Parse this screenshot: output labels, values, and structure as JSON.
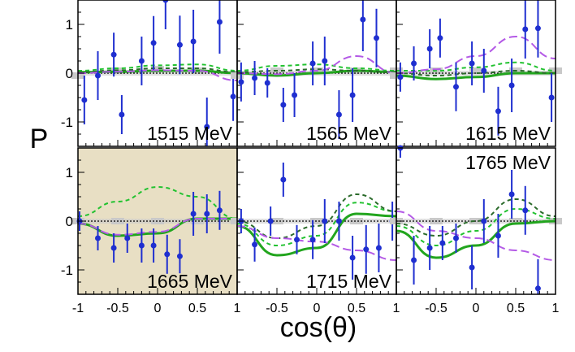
{
  "figure": {
    "ylabel": "P",
    "xlabel": "cos(θ)"
  },
  "colors": {
    "beige_background": "#e8dfc4",
    "data_points": "#1f2fd0",
    "model_solid_green": "#22a51e",
    "model_dashed_green": "#22c230",
    "model_dashed_darkgreen": "#2b6b2b",
    "model_dashed_lightgreen": "#8fdc7a",
    "model_dashed_violet": "#b45ae6",
    "systematic_band": "#c9c9c9",
    "zero_line": "#000000"
  },
  "chart_data": [
    {
      "type": "scatter",
      "label": "1515 MeV",
      "highlighted": false,
      "xlim": [
        -1,
        1
      ],
      "ylim": [
        -1.5,
        1.5
      ],
      "x_ticks": [
        "-1",
        "-0.5",
        "0",
        "0.5",
        "1"
      ],
      "y_ticks": [
        "-1",
        "0",
        "1"
      ],
      "points": [
        {
          "x": -0.92,
          "y": -0.55,
          "err": 0.5
        },
        {
          "x": -0.75,
          "y": -0.05,
          "err": 0.5
        },
        {
          "x": -0.55,
          "y": 0.38,
          "err": 0.45
        },
        {
          "x": -0.45,
          "y": -0.85,
          "err": 0.4
        },
        {
          "x": -0.2,
          "y": 0.25,
          "err": 0.5
        },
        {
          "x": -0.05,
          "y": 0.62,
          "err": 0.55
        },
        {
          "x": 0.1,
          "y": 1.5,
          "err": 0.6
        },
        {
          "x": 0.28,
          "y": 0.58,
          "err": 0.6
        },
        {
          "x": 0.45,
          "y": 0.65,
          "err": 0.65
        },
        {
          "x": 0.62,
          "y": -1.1,
          "err": 0.6
        },
        {
          "x": 0.78,
          "y": 1.05,
          "err": 0.65
        },
        {
          "x": 0.95,
          "y": -0.48,
          "err": 0.5
        }
      ],
      "band": [
        -0.05,
        0.05,
        0.08,
        0.05,
        -0.02
      ],
      "series": [
        {
          "name": "",
          "style": "solid",
          "color": "#22a51e",
          "x": [
            -1,
            -0.5,
            0,
            0.5,
            1
          ],
          "y": [
            0.02,
            0.03,
            0.05,
            0.05,
            0.0
          ]
        },
        {
          "name": "",
          "style": "dashed",
          "color": "#22c230",
          "x": [
            -1,
            -0.5,
            0,
            0.5,
            1
          ],
          "y": [
            0.05,
            0.1,
            0.16,
            0.18,
            0.05
          ]
        },
        {
          "name": "",
          "style": "dashed",
          "color": "#2b6b2b",
          "x": [
            -1,
            -0.5,
            0,
            0.5,
            1
          ],
          "y": [
            0.02,
            0.06,
            0.1,
            0.1,
            0.02
          ]
        },
        {
          "name": "",
          "style": "dashed",
          "color": "#b45ae6",
          "x": [
            -1,
            -0.5,
            0,
            0.5,
            1
          ],
          "y": [
            0.0,
            0.03,
            0.06,
            0.05,
            -0.15
          ]
        }
      ]
    },
    {
      "type": "scatter",
      "label": "1565 MeV",
      "highlighted": false,
      "xlim": [
        -1,
        1
      ],
      "ylim": [
        -1.5,
        1.5
      ],
      "x_ticks": [],
      "y_ticks": [],
      "points": [
        {
          "x": -0.95,
          "y": -0.18,
          "err": 0.4
        },
        {
          "x": -0.78,
          "y": -0.1,
          "err": 0.35
        },
        {
          "x": -0.62,
          "y": -0.2,
          "err": 0.3
        },
        {
          "x": -0.42,
          "y": -0.65,
          "err": 0.35
        },
        {
          "x": -0.28,
          "y": -0.45,
          "err": 0.45
        },
        {
          "x": -0.05,
          "y": 0.2,
          "err": 0.45
        },
        {
          "x": 0.1,
          "y": 0.25,
          "err": 0.5
        },
        {
          "x": 0.28,
          "y": -0.85,
          "err": 0.5
        },
        {
          "x": 0.45,
          "y": -0.45,
          "err": 0.55
        },
        {
          "x": 0.58,
          "y": 1.1,
          "err": 0.65
        },
        {
          "x": 0.75,
          "y": 0.72,
          "err": 0.6
        }
      ],
      "band": [
        -0.05,
        0.05,
        0.05,
        0.05,
        0.05
      ],
      "series": [
        {
          "name": "",
          "style": "solid",
          "color": "#22a51e",
          "x": [
            -1,
            -0.5,
            0,
            0.5,
            1
          ],
          "y": [
            0.0,
            -0.05,
            0.0,
            0.05,
            0.02
          ]
        },
        {
          "name": "",
          "style": "dashed",
          "color": "#22c230",
          "x": [
            -1,
            -0.5,
            0,
            0.5,
            1
          ],
          "y": [
            0.05,
            0.15,
            0.18,
            0.1,
            0.05
          ]
        },
        {
          "name": "",
          "style": "dashed",
          "color": "#2b6b2b",
          "x": [
            -1,
            -0.5,
            0,
            0.5,
            1
          ],
          "y": [
            0.02,
            0.05,
            0.08,
            0.05,
            0.02
          ]
        },
        {
          "name": "",
          "style": "dashed",
          "color": "#b45ae6",
          "x": [
            -1,
            -0.5,
            0,
            0.5,
            1
          ],
          "y": [
            0.0,
            -0.02,
            0.05,
            0.35,
            0.0
          ]
        }
      ]
    },
    {
      "type": "scatter",
      "label": "1615 MeV",
      "highlighted": false,
      "xlim": [
        -1,
        1
      ],
      "ylim": [
        -1.5,
        1.5
      ],
      "x_ticks": [],
      "y_ticks": [],
      "points": [
        {
          "x": -0.95,
          "y": -0.08,
          "err": 0.3
        },
        {
          "x": -0.78,
          "y": 0.2,
          "err": 0.35
        },
        {
          "x": -0.58,
          "y": 0.5,
          "err": 0.4
        },
        {
          "x": -0.45,
          "y": 0.72,
          "err": 0.4
        },
        {
          "x": -0.25,
          "y": -0.28,
          "err": 0.5
        },
        {
          "x": -0.05,
          "y": 0.2,
          "err": 0.45
        },
        {
          "x": 0.1,
          "y": 0.05,
          "err": 0.45
        },
        {
          "x": 0.28,
          "y": -0.78,
          "err": 0.5
        },
        {
          "x": 0.45,
          "y": -0.25,
          "err": 0.55
        },
        {
          "x": 0.62,
          "y": 0.9,
          "err": 0.6
        },
        {
          "x": 0.78,
          "y": 0.92,
          "err": 0.6
        },
        {
          "x": 0.95,
          "y": -0.5,
          "err": 0.5
        }
      ],
      "band": [
        -0.05,
        0.05,
        0.05,
        0.05,
        0.05
      ],
      "series": [
        {
          "name": "",
          "style": "solid",
          "color": "#22a51e",
          "x": [
            -1,
            -0.5,
            0,
            0.5,
            1
          ],
          "y": [
            -0.05,
            -0.12,
            -0.08,
            0.0,
            0.0
          ]
        },
        {
          "name": "",
          "style": "dashed",
          "color": "#22c230",
          "x": [
            -1,
            -0.5,
            0,
            0.5,
            1
          ],
          "y": [
            0.05,
            0.05,
            0.12,
            0.22,
            0.05
          ]
        },
        {
          "name": "",
          "style": "dashed",
          "color": "#2b6b2b",
          "x": [
            -1,
            -0.5,
            0,
            0.5,
            1
          ],
          "y": [
            0.0,
            -0.05,
            0.0,
            0.05,
            0.0
          ]
        },
        {
          "name": "",
          "style": "dashed",
          "color": "#b45ae6",
          "x": [
            -1,
            -0.5,
            0,
            0.5,
            1
          ],
          "y": [
            0.0,
            0.08,
            0.35,
            0.75,
            0.3
          ]
        }
      ]
    },
    {
      "type": "scatter",
      "label": "1665 MeV",
      "highlighted": true,
      "xlim": [
        -1,
        1
      ],
      "ylim": [
        -1.5,
        1.5
      ],
      "x_ticks": [
        "-1",
        "-0.5",
        "0",
        "0.5",
        "1"
      ],
      "y_ticks": [
        "-1",
        "0",
        "1"
      ],
      "points": [
        {
          "x": -0.98,
          "y": 0.0,
          "err": 0.2
        },
        {
          "x": -0.75,
          "y": -0.35,
          "err": 0.25
        },
        {
          "x": -0.55,
          "y": -0.55,
          "err": 0.3
        },
        {
          "x": -0.38,
          "y": -0.35,
          "err": 0.3
        },
        {
          "x": -0.2,
          "y": -0.5,
          "err": 0.35
        },
        {
          "x": -0.05,
          "y": -0.5,
          "err": 0.35
        },
        {
          "x": 0.12,
          "y": -0.68,
          "err": 0.4
        },
        {
          "x": 0.28,
          "y": -0.72,
          "err": 0.35
        },
        {
          "x": 0.45,
          "y": 0.15,
          "err": 0.45
        },
        {
          "x": 0.62,
          "y": 0.15,
          "err": 0.4
        },
        {
          "x": 0.78,
          "y": 0.22,
          "err": 0.4
        }
      ],
      "band": [
        0.0,
        0.0,
        0.0,
        0.0,
        0.0
      ],
      "series": [
        {
          "name": "",
          "style": "solid",
          "color": "#22a51e",
          "x": [
            -1,
            -0.5,
            0,
            0.5,
            1
          ],
          "y": [
            -0.05,
            -0.3,
            -0.25,
            0.05,
            0.05
          ]
        },
        {
          "name": "",
          "style": "dashed",
          "color": "#22c230",
          "x": [
            -1,
            -0.5,
            0,
            0.5,
            1
          ],
          "y": [
            0.1,
            0.4,
            0.7,
            0.5,
            0.05
          ]
        },
        {
          "name": "",
          "style": "dashed",
          "color": "#b45ae6",
          "x": [
            -1,
            -0.5,
            0,
            0.5,
            1
          ],
          "y": [
            -0.05,
            -0.28,
            -0.22,
            0.05,
            0.05
          ]
        }
      ]
    },
    {
      "type": "scatter",
      "label": "1715 MeV",
      "highlighted": false,
      "xlim": [
        -1,
        1
      ],
      "ylim": [
        -1.5,
        1.5
      ],
      "x_ticks": [],
      "y_ticks": [],
      "points": [
        {
          "x": -0.95,
          "y": 0.0,
          "err": 0.25
        },
        {
          "x": -0.78,
          "y": -0.48,
          "err": 0.35
        },
        {
          "x": -0.58,
          "y": 0.0,
          "err": 0.3
        },
        {
          "x": -0.42,
          "y": 0.85,
          "err": 0.35
        },
        {
          "x": -0.25,
          "y": -0.38,
          "err": 0.3
        },
        {
          "x": -0.05,
          "y": -0.38,
          "err": 0.4
        },
        {
          "x": 0.1,
          "y": 0.0,
          "err": 0.45
        },
        {
          "x": 0.28,
          "y": 0.0,
          "err": 0.4
        },
        {
          "x": 0.45,
          "y": -0.75,
          "err": 0.45
        },
        {
          "x": 0.62,
          "y": -0.58,
          "err": 0.5
        },
        {
          "x": 0.78,
          "y": -0.55,
          "err": 0.5
        },
        {
          "x": 0.95,
          "y": 0.0,
          "err": 0.4
        }
      ],
      "band": [
        0.0,
        0.0,
        0.0,
        0.0,
        0.0
      ],
      "series": [
        {
          "name": "",
          "style": "solid",
          "color": "#22a51e",
          "x": [
            -1,
            -0.5,
            0,
            0.5,
            1
          ],
          "y": [
            -0.1,
            -0.7,
            -0.55,
            0.15,
            0.1
          ]
        },
        {
          "name": "",
          "style": "dashed",
          "color": "#22c230",
          "x": [
            -1,
            -0.5,
            0,
            0.5,
            1
          ],
          "y": [
            -0.05,
            -0.5,
            -0.3,
            0.38,
            0.2
          ]
        },
        {
          "name": "",
          "style": "dashed",
          "color": "#2b6b2b",
          "x": [
            -1,
            -0.5,
            0,
            0.5,
            1
          ],
          "y": [
            0.0,
            -0.35,
            -0.1,
            0.55,
            0.2
          ]
        },
        {
          "name": "",
          "style": "dashed",
          "color": "#b45ae6",
          "x": [
            -1,
            -0.5,
            0,
            0.5,
            1
          ],
          "y": [
            -0.1,
            -0.35,
            -0.42,
            -0.6,
            -0.8
          ]
        }
      ]
    },
    {
      "type": "scatter",
      "label": "1765 MeV",
      "highlighted": false,
      "xlim": [
        -1,
        1
      ],
      "ylim": [
        -1.5,
        1.5
      ],
      "x_ticks": [],
      "y_ticks": [],
      "points": [
        {
          "x": -0.95,
          "y": 1.5,
          "err": 0.2
        },
        {
          "x": -0.78,
          "y": -0.8,
          "err": 0.5
        },
        {
          "x": -0.58,
          "y": -0.55,
          "err": 0.45
        },
        {
          "x": -0.42,
          "y": -0.45,
          "err": 0.35
        },
        {
          "x": -0.25,
          "y": -0.35,
          "err": 0.3
        },
        {
          "x": -0.05,
          "y": -0.95,
          "err": 0.45
        },
        {
          "x": 0.1,
          "y": 0.0,
          "err": 0.45
        },
        {
          "x": 0.28,
          "y": -0.3,
          "err": 0.45
        },
        {
          "x": 0.45,
          "y": 0.55,
          "err": 0.5
        },
        {
          "x": 0.62,
          "y": 0.22,
          "err": 0.5
        },
        {
          "x": 0.78,
          "y": -1.38,
          "err": 0.6
        }
      ],
      "band": [
        0.0,
        0.0,
        0.0,
        0.0,
        0.0
      ],
      "series": [
        {
          "name": "",
          "style": "solid",
          "color": "#22a51e",
          "x": [
            -1,
            -0.5,
            0,
            0.5,
            1
          ],
          "y": [
            -0.2,
            -0.75,
            -0.5,
            -0.05,
            0.0
          ]
        },
        {
          "name": "",
          "style": "dashed",
          "color": "#22c230",
          "x": [
            -1,
            -0.5,
            0,
            0.5,
            1
          ],
          "y": [
            -0.1,
            -0.5,
            -0.2,
            0.25,
            0.05
          ]
        },
        {
          "name": "",
          "style": "dashed",
          "color": "#2b6b2b",
          "x": [
            -1,
            -0.5,
            0,
            0.5,
            1
          ],
          "y": [
            -0.05,
            -0.3,
            0.0,
            0.45,
            0.1
          ]
        },
        {
          "name": "",
          "style": "dashed",
          "color": "#b45ae6",
          "x": [
            -1,
            -0.5,
            0,
            0.5,
            1
          ],
          "y": [
            0.2,
            -0.2,
            -0.35,
            -0.6,
            -0.8
          ]
        }
      ]
    }
  ]
}
